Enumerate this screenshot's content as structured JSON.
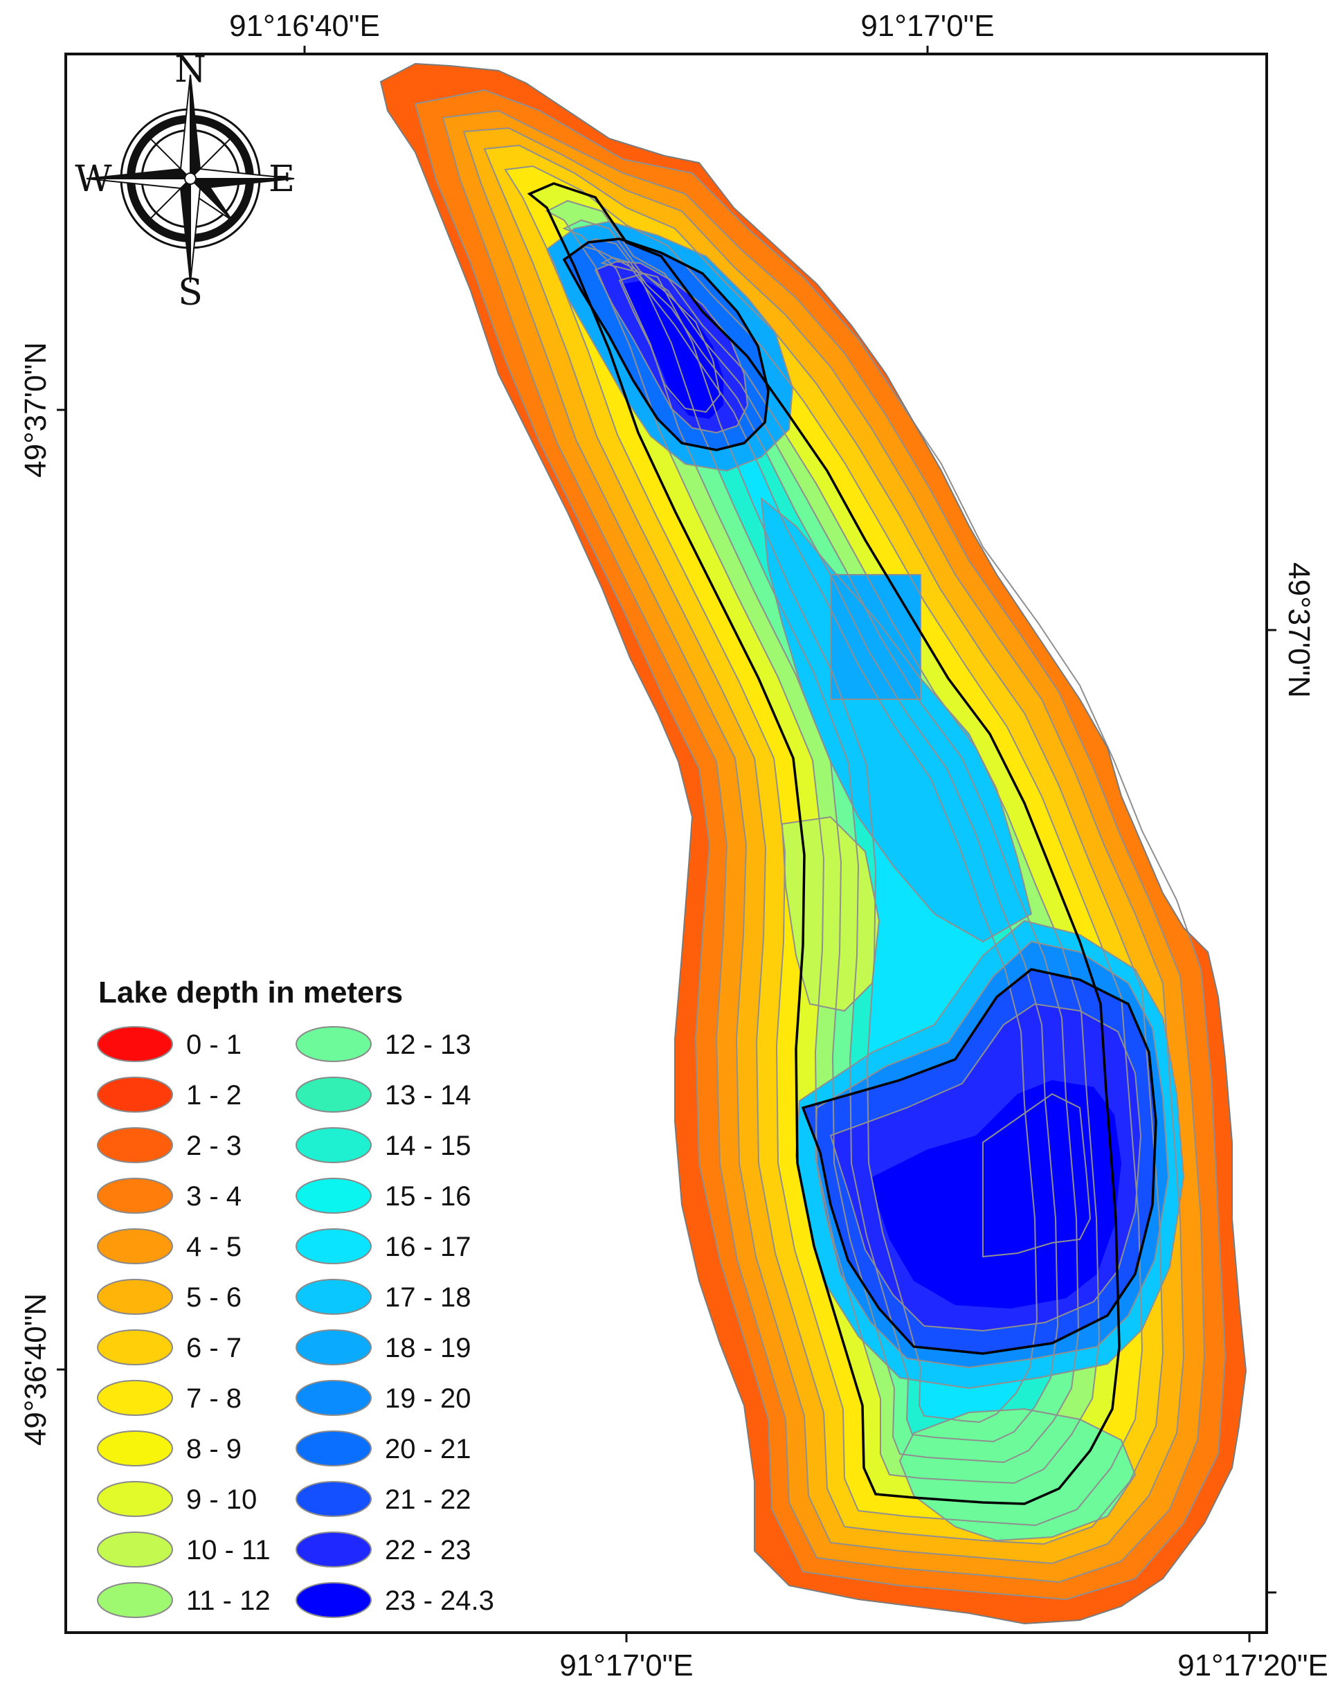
{
  "map": {
    "coords": {
      "top_left": "91°16'40\"E",
      "top_right": "91°17'0\"E",
      "bottom_left": "91°17'0\"E",
      "bottom_right": "91°17'20\"E",
      "left_top": "49°37'0\"N",
      "left_bottom": "49°36'40\"N",
      "right": "49°37'0\"N"
    },
    "compass": {
      "n": "N",
      "s": "S",
      "e": "E",
      "w": "W"
    },
    "legend": {
      "title": "Lake depth in meters",
      "items": [
        {
          "label": "0 - 1",
          "color": "#ff0a0a"
        },
        {
          "label": "1 - 2",
          "color": "#ff3c0a"
        },
        {
          "label": "2 - 3",
          "color": "#ff5f0a"
        },
        {
          "label": "3 - 4",
          "color": "#ff7d0a"
        },
        {
          "label": "4 - 5",
          "color": "#ff9a0a"
        },
        {
          "label": "5 - 6",
          "color": "#ffb40a"
        },
        {
          "label": "6 - 7",
          "color": "#ffcf0a"
        },
        {
          "label": "7 - 8",
          "color": "#ffe80a"
        },
        {
          "label": "8 - 9",
          "color": "#f8f50a"
        },
        {
          "label": "9 - 10",
          "color": "#e2fa2a"
        },
        {
          "label": "10 - 11",
          "color": "#c4fa50"
        },
        {
          "label": "11 - 12",
          "color": "#9ef870"
        },
        {
          "label": "12 - 13",
          "color": "#6cfa9a"
        },
        {
          "label": "13 - 14",
          "color": "#32f0b4"
        },
        {
          "label": "14 - 15",
          "color": "#1ef0d2"
        },
        {
          "label": "15 - 16",
          "color": "#0af5f0"
        },
        {
          "label": "16 - 17",
          "color": "#0ae4ff"
        },
        {
          "label": "17 - 18",
          "color": "#0ac8ff"
        },
        {
          "label": "18 - 19",
          "color": "#0aaaff"
        },
        {
          "label": "19 - 20",
          "color": "#0a8cff"
        },
        {
          "label": "20 - 21",
          "color": "#0a6eff"
        },
        {
          "label": "21 - 22",
          "color": "#1450ff"
        },
        {
          "label": "22 - 23",
          "color": "#1e28ff"
        },
        {
          "label": "23 - 24.3",
          "color": "#0000ff"
        }
      ]
    }
  }
}
